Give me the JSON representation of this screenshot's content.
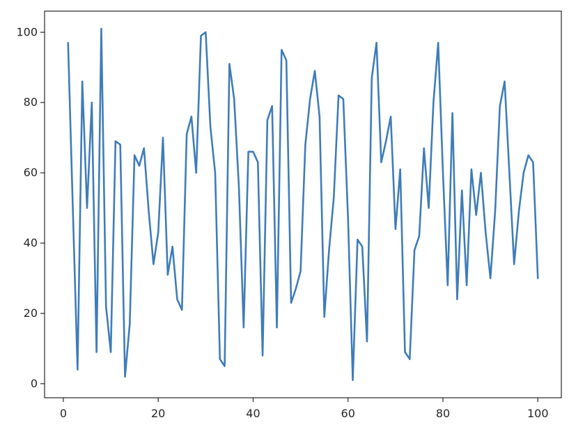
{
  "chart_data": {
    "type": "line",
    "title": "",
    "xlabel": "",
    "ylabel": "",
    "xlim": [
      -3.95,
      104.95
    ],
    "ylim": [
      -4,
      106
    ],
    "x_ticks": [
      0,
      20,
      40,
      60,
      80,
      100
    ],
    "y_ticks": [
      0,
      20,
      40,
      60,
      80,
      100
    ],
    "x_tick_labels": [
      "0",
      "20",
      "40",
      "60",
      "80",
      "100"
    ],
    "y_tick_labels": [
      "0",
      "20",
      "40",
      "60",
      "80",
      "100"
    ],
    "grid": false,
    "legend": "none",
    "series_color": "#3f7cb9",
    "series": [
      {
        "x": [
          1,
          2,
          3,
          4,
          5,
          6,
          7,
          8,
          9,
          10,
          11,
          12,
          13,
          14,
          15,
          16,
          17,
          18,
          19,
          20,
          21,
          22,
          23,
          24,
          25,
          26,
          27,
          28,
          29,
          30,
          31,
          32,
          33,
          34,
          35,
          36,
          37,
          38,
          39,
          40,
          41,
          42,
          43,
          44,
          45,
          46,
          47,
          48,
          49,
          50,
          51,
          52,
          53,
          54,
          55,
          56,
          57,
          58,
          59,
          60,
          61,
          62,
          63,
          64,
          65,
          66,
          67,
          68,
          69,
          70,
          71,
          72,
          73,
          74,
          75,
          76,
          77,
          78,
          79,
          80,
          81,
          82,
          83,
          84,
          85,
          86,
          87,
          88,
          89,
          90,
          91,
          92,
          93,
          94,
          95,
          96,
          97,
          98,
          99,
          100
        ],
        "values": [
          97,
          50,
          4,
          86,
          50,
          80,
          9,
          101,
          22,
          9,
          69,
          68,
          2,
          17,
          65,
          62,
          67,
          49,
          34,
          43,
          70,
          31,
          39,
          24,
          21,
          71,
          76,
          60,
          99,
          100,
          73,
          60,
          7,
          5,
          91,
          81,
          56,
          16,
          66,
          66,
          63,
          8,
          75,
          79,
          16,
          95,
          92,
          23,
          27,
          32,
          68,
          81,
          89,
          76,
          19,
          38,
          53,
          82,
          81,
          47,
          1,
          41,
          39,
          12,
          87,
          97,
          63,
          69,
          76,
          44,
          61,
          9,
          7,
          38,
          42,
          67,
          50,
          80,
          97,
          60,
          28,
          77,
          24,
          55,
          28,
          61,
          48,
          60,
          43,
          30,
          49,
          79,
          86,
          60,
          34,
          49,
          60,
          65,
          63,
          30
        ]
      }
    ]
  }
}
